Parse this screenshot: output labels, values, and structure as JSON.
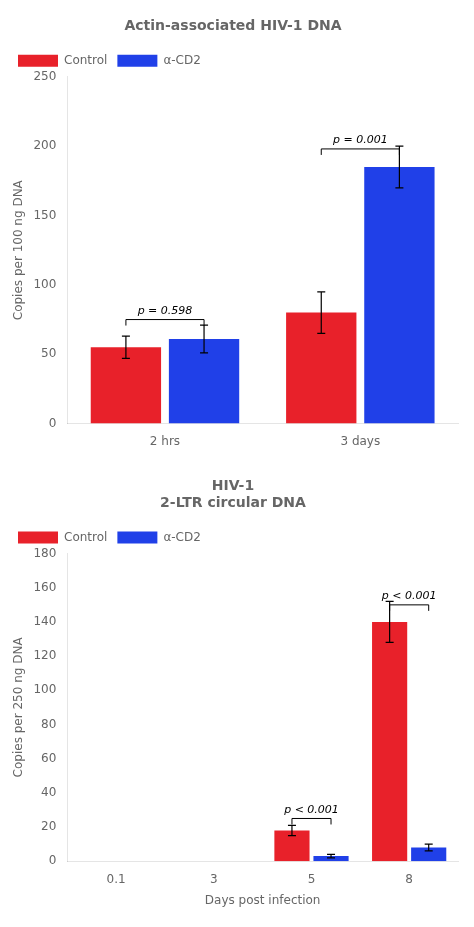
{
  "chart_data": [
    {
      "type": "bar",
      "title": "Actin-associated HIV-1 DNA",
      "categories": [
        "2 hrs",
        "3 days"
      ],
      "series": [
        {
          "name": "Control",
          "color": "#e8212a",
          "values": [
            55,
            80
          ],
          "errors": [
            8,
            15
          ]
        },
        {
          "name": "α-CD2",
          "color": "#2040e8",
          "values": [
            61,
            185
          ],
          "errors": [
            10,
            15
          ]
        }
      ],
      "ylabel": "Copies per 100 ng DNA",
      "ylim": [
        0,
        250
      ],
      "yticks": [
        0,
        50,
        100,
        150,
        200,
        250
      ],
      "annotations": [
        {
          "text": "p = 0.598",
          "category": "2 hrs",
          "y": 75
        },
        {
          "text": "p = 0.001",
          "category": "3 days",
          "y": 198
        }
      ],
      "grid": false,
      "legend": "upper left"
    },
    {
      "type": "bar",
      "title": "HIV-1\n2-LTR circular DNA",
      "categories": [
        "0.1",
        "3",
        "5",
        "8"
      ],
      "series": [
        {
          "name": "Control",
          "color": "#e8212a",
          "values": [
            0,
            0,
            18,
            140
          ],
          "errors": [
            0,
            0,
            3,
            12
          ]
        },
        {
          "name": "α-CD2",
          "color": "#2040e8",
          "values": [
            0,
            0,
            3,
            8
          ],
          "errors": [
            0,
            0,
            1,
            2
          ]
        }
      ],
      "xlabel": "Days post infection",
      "ylabel": "Copies per 250 ng DNA",
      "ylim": [
        0,
        180
      ],
      "yticks": [
        0,
        20,
        40,
        60,
        80,
        100,
        120,
        140,
        160,
        180
      ],
      "annotations": [
        {
          "text": "p < 0.001",
          "category": "5",
          "y": 25
        },
        {
          "text": "p < 0.001",
          "category": "8",
          "y": 150
        }
      ],
      "grid": false,
      "legend": "upper left"
    }
  ]
}
